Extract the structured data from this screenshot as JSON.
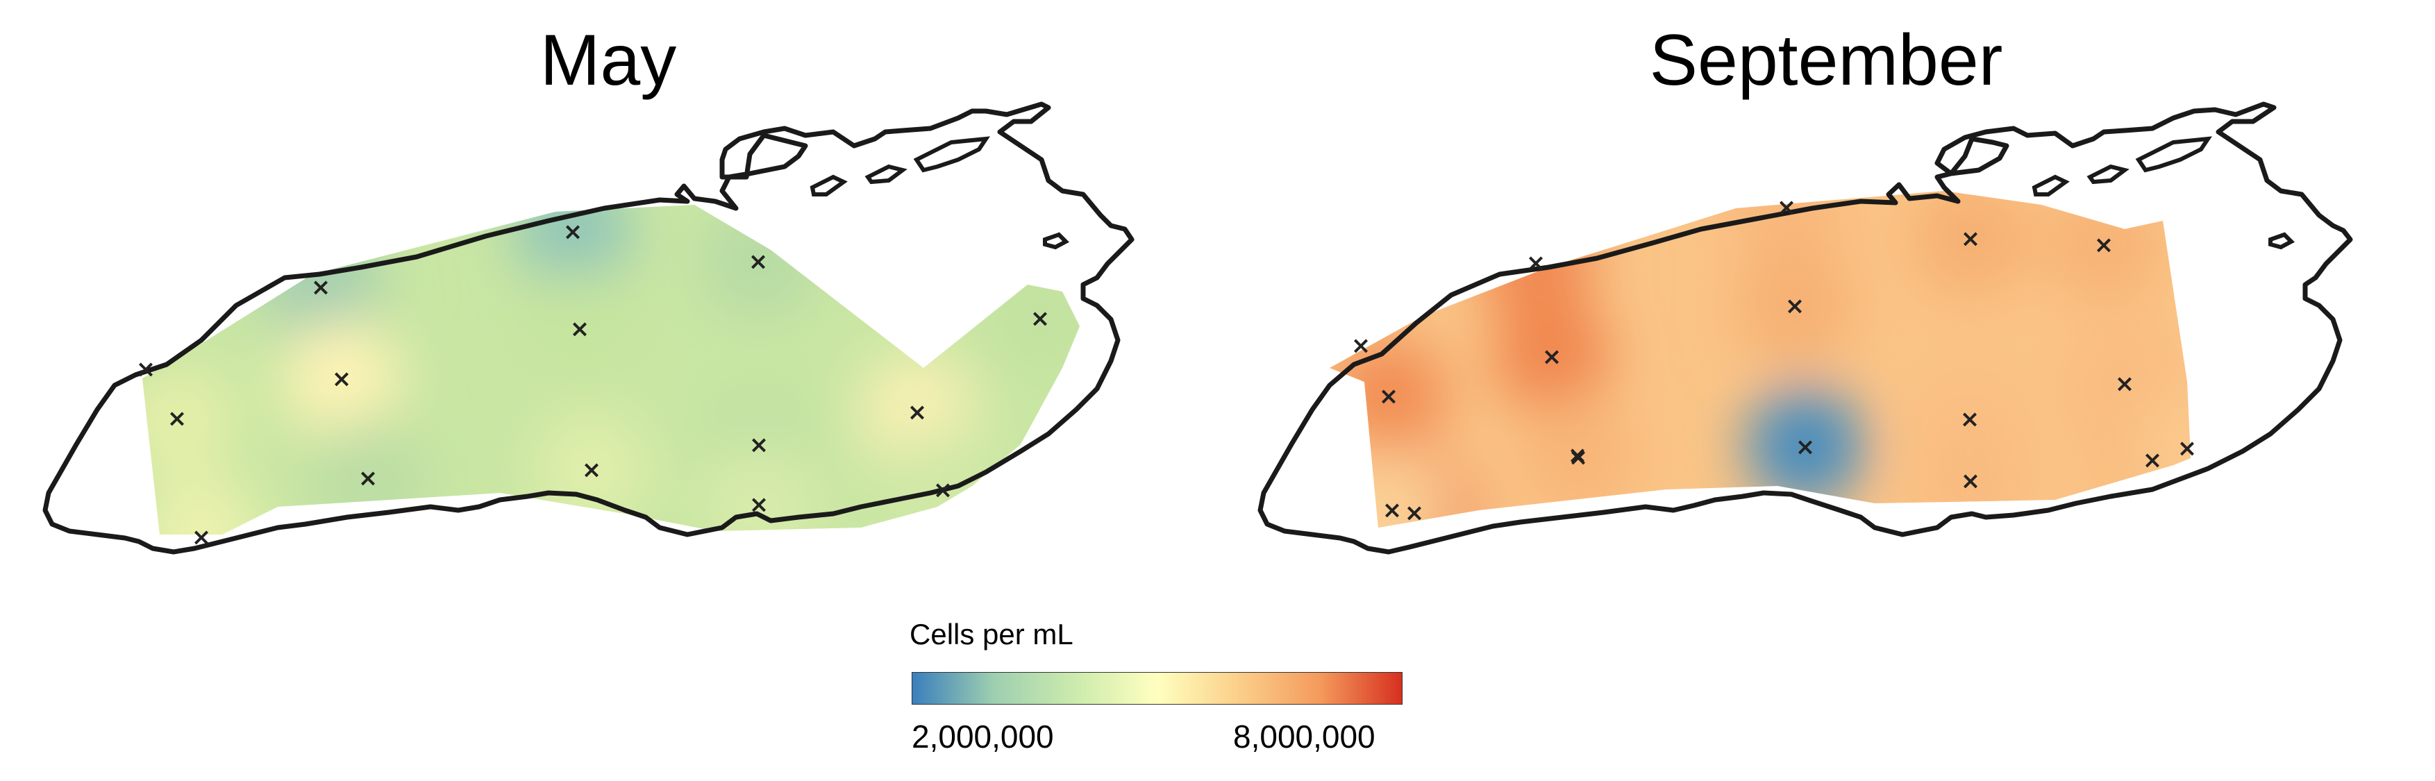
{
  "panels": [
    {
      "title": "May",
      "base_color": "#c9e6a3",
      "stations": [
        {
          "value": 3.0,
          "color": "#92c6b8"
        },
        {
          "value": 3.2,
          "color": "#a2cdb0"
        },
        {
          "value": 3.6,
          "color": "#b7dba6"
        },
        {
          "value": 4.2,
          "color": "#c6e59f"
        },
        {
          "value": 4.0,
          "color": "#c2e2a0"
        },
        {
          "value": 3.9,
          "color": "#bfe0a2"
        },
        {
          "value": 5.2,
          "color": "#fdf3b5"
        },
        {
          "value": 4.6,
          "color": "#e3efa9"
        },
        {
          "value": 5.0,
          "color": "#f8f0b4"
        },
        {
          "value": 3.8,
          "color": "#bfe1a3"
        },
        {
          "value": 3.7,
          "color": "#bbdda4"
        },
        {
          "value": 4.6,
          "color": "#e0eeab"
        },
        {
          "value": 4.4,
          "color": "#d8ebab"
        },
        {
          "value": 4.2,
          "color": "#d0e8a6"
        },
        {
          "value": 4.8,
          "color": "#ecf2ae"
        }
      ]
    },
    {
      "title": "September",
      "base_color": "#fac486",
      "stations": [
        {
          "value": 6.4,
          "color": "#f9b77b"
        },
        {
          "value": 7.2,
          "color": "#f18a52"
        },
        {
          "value": 6.6,
          "color": "#f6b072"
        },
        {
          "value": 6.5,
          "color": "#f7b376"
        },
        {
          "value": 6.2,
          "color": "#f8be82"
        },
        {
          "value": 6.6,
          "color": "#f6b173"
        },
        {
          "value": 7.1,
          "color": "#f0874f"
        },
        {
          "value": 6.3,
          "color": "#f9bc80"
        },
        {
          "value": 7.0,
          "color": "#f28e55"
        },
        {
          "value": 2.3,
          "color": "#4a8dbd"
        },
        {
          "value": 6.1,
          "color": "#fac489"
        },
        {
          "value": 6.3,
          "color": "#fabf84"
        },
        {
          "value": 6.4,
          "color": "#f9bb7f"
        },
        {
          "value": 6.4,
          "color": "#f8b97c"
        },
        {
          "value": 6.0,
          "color": "#fbc88c"
        },
        {
          "value": 6.5,
          "color": "#f8b678"
        },
        {
          "value": 7.6,
          "color": "#ea6a3e"
        },
        {
          "value": 5.8,
          "color": "#fbd096"
        }
      ]
    }
  ],
  "legend": {
    "title": "Cells per mL",
    "tick_min": "2,000,000",
    "tick_max": "8,000,000",
    "colors": [
      "#3a7fbc",
      "#9fcfb0",
      "#ccebad",
      "#ffffbf",
      "#fbcf89",
      "#f49a5c",
      "#d7301f"
    ]
  },
  "station_marker": "×"
}
